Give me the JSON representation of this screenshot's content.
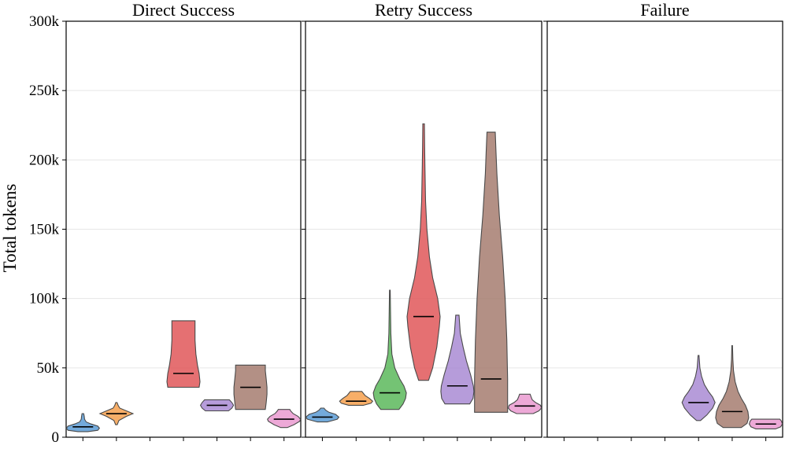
{
  "chart_data": {
    "type": "violin",
    "ylabel": "Total tokens",
    "ylim": [
      0,
      300000
    ],
    "yticks": [
      0,
      50000,
      100000,
      150000,
      200000,
      250000,
      300000
    ],
    "ytick_labels": [
      "0",
      "50k",
      "100k",
      "150k",
      "200k",
      "250k",
      "300k"
    ],
    "grid": true,
    "legend": "none",
    "series_colors": [
      "#5b9bd5",
      "#f6a04d",
      "#5cb85c",
      "#e15759",
      "#a98bd4",
      "#a67c70",
      "#ea9ad0"
    ],
    "x_slots": 7,
    "panels": [
      {
        "title": "Direct Success",
        "violins": [
          {
            "slot": 0,
            "min": 4000,
            "max": 17000,
            "median": 7500,
            "profile": [
              [
                4000,
                0.3
              ],
              [
                5000,
                0.9
              ],
              [
                6500,
                1.0
              ],
              [
                8000,
                0.9
              ],
              [
                9500,
                0.5
              ],
              [
                11000,
                0.2
              ],
              [
                13000,
                0.1
              ],
              [
                15000,
                0.08
              ],
              [
                17000,
                0.05
              ]
            ]
          },
          {
            "slot": 1,
            "min": 9000,
            "max": 25000,
            "median": 17000,
            "profile": [
              [
                9000,
                0.05
              ],
              [
                12000,
                0.15
              ],
              [
                15000,
                0.6
              ],
              [
                17000,
                1.0
              ],
              [
                19000,
                0.6
              ],
              [
                21000,
                0.2
              ],
              [
                23000,
                0.1
              ],
              [
                25000,
                0.04
              ]
            ]
          },
          {
            "slot": 3,
            "min": 36000,
            "max": 84000,
            "median": 46000,
            "profile": [
              [
                36000,
                0.95
              ],
              [
                40000,
                1.0
              ],
              [
                46000,
                0.95
              ],
              [
                52000,
                0.85
              ],
              [
                60000,
                0.75
              ],
              [
                70000,
                0.7
              ],
              [
                78000,
                0.7
              ],
              [
                84000,
                0.7
              ]
            ]
          },
          {
            "slot": 4,
            "min": 19000,
            "max": 27000,
            "median": 23000,
            "profile": [
              [
                19000,
                0.7
              ],
              [
                21000,
                0.9
              ],
              [
                23000,
                1.0
              ],
              [
                25000,
                0.9
              ],
              [
                27000,
                0.75
              ]
            ]
          },
          {
            "slot": 5,
            "min": 20000,
            "max": 52000,
            "median": 36000,
            "profile": [
              [
                20000,
                0.9
              ],
              [
                25000,
                0.95
              ],
              [
                31000,
                1.0
              ],
              [
                36000,
                1.0
              ],
              [
                42000,
                0.95
              ],
              [
                48000,
                0.9
              ],
              [
                52000,
                0.9
              ]
            ]
          },
          {
            "slot": 6,
            "min": 7000,
            "max": 20000,
            "median": 13000,
            "profile": [
              [
                7000,
                0.2
              ],
              [
                9000,
                0.6
              ],
              [
                11500,
                0.95
              ],
              [
                13000,
                1.0
              ],
              [
                15000,
                0.85
              ],
              [
                17000,
                0.55
              ],
              [
                19000,
                0.4
              ],
              [
                20000,
                0.35
              ]
            ]
          }
        ]
      },
      {
        "title": "Retry Success",
        "violins": [
          {
            "slot": 0,
            "min": 11000,
            "max": 21000,
            "median": 14500,
            "profile": [
              [
                11000,
                0.3
              ],
              [
                13000,
                0.9
              ],
              [
                14500,
                1.0
              ],
              [
                16500,
                0.8
              ],
              [
                18000,
                0.4
              ],
              [
                19500,
                0.2
              ],
              [
                21000,
                0.1
              ]
            ]
          },
          {
            "slot": 1,
            "min": 23000,
            "max": 33000,
            "median": 26000,
            "profile": [
              [
                23000,
                0.45
              ],
              [
                24500,
                0.9
              ],
              [
                26000,
                1.0
              ],
              [
                28000,
                0.8
              ],
              [
                30000,
                0.55
              ],
              [
                31500,
                0.45
              ],
              [
                33000,
                0.35
              ]
            ]
          },
          {
            "slot": 2,
            "min": 20000,
            "max": 106000,
            "median": 32000,
            "profile": [
              [
                20000,
                0.55
              ],
              [
                24000,
                0.8
              ],
              [
                28000,
                0.95
              ],
              [
                32000,
                1.0
              ],
              [
                37000,
                0.85
              ],
              [
                42000,
                0.6
              ],
              [
                50000,
                0.3
              ],
              [
                60000,
                0.12
              ],
              [
                75000,
                0.06
              ],
              [
                90000,
                0.04
              ],
              [
                106000,
                0.02
              ]
            ]
          },
          {
            "slot": 3,
            "min": 41000,
            "max": 226000,
            "median": 87000,
            "profile": [
              [
                41000,
                0.3
              ],
              [
                50000,
                0.55
              ],
              [
                65000,
                0.8
              ],
              [
                80000,
                0.95
              ],
              [
                87000,
                1.0
              ],
              [
                100000,
                0.85
              ],
              [
                115000,
                0.55
              ],
              [
                130000,
                0.35
              ],
              [
                150000,
                0.2
              ],
              [
                170000,
                0.12
              ],
              [
                195000,
                0.08
              ],
              [
                210000,
                0.06
              ],
              [
                226000,
                0.05
              ]
            ]
          },
          {
            "slot": 4,
            "min": 24000,
            "max": 88000,
            "median": 37000,
            "profile": [
              [
                24000,
                0.75
              ],
              [
                28000,
                0.95
              ],
              [
                33000,
                1.0
              ],
              [
                37000,
                0.97
              ],
              [
                45000,
                0.8
              ],
              [
                55000,
                0.55
              ],
              [
                65000,
                0.35
              ],
              [
                75000,
                0.18
              ],
              [
                88000,
                0.1
              ]
            ]
          },
          {
            "slot": 5,
            "min": 18000,
            "max": 220000,
            "median": 42000,
            "profile": [
              [
                18000,
                1.0
              ],
              [
                42000,
                1.0
              ],
              [
                70000,
                0.95
              ],
              [
                100000,
                0.85
              ],
              [
                130000,
                0.7
              ],
              [
                160000,
                0.5
              ],
              [
                190000,
                0.35
              ],
              [
                205000,
                0.3
              ],
              [
                220000,
                0.25
              ]
            ]
          },
          {
            "slot": 6,
            "min": 17000,
            "max": 31000,
            "median": 22500,
            "profile": [
              [
                17000,
                0.5
              ],
              [
                19000,
                0.85
              ],
              [
                21000,
                1.0
              ],
              [
                23000,
                0.95
              ],
              [
                25000,
                0.65
              ],
              [
                27000,
                0.45
              ],
              [
                29000,
                0.38
              ],
              [
                31000,
                0.32
              ]
            ]
          }
        ]
      },
      {
        "title": "Failure",
        "violins": [
          {
            "slot": 4,
            "min": 12000,
            "max": 59000,
            "median": 25000,
            "profile": [
              [
                12000,
                0.12
              ],
              [
                16000,
                0.5
              ],
              [
                21000,
                0.85
              ],
              [
                25000,
                1.0
              ],
              [
                29000,
                0.85
              ],
              [
                33000,
                0.6
              ],
              [
                38000,
                0.35
              ],
              [
                44000,
                0.18
              ],
              [
                50000,
                0.08
              ],
              [
                59000,
                0.03
              ]
            ]
          },
          {
            "slot": 5,
            "min": 7000,
            "max": 66000,
            "median": 18500,
            "profile": [
              [
                7000,
                0.55
              ],
              [
                10000,
                0.9
              ],
              [
                14000,
                1.0
              ],
              [
                18500,
                0.95
              ],
              [
                23000,
                0.8
              ],
              [
                28000,
                0.55
              ],
              [
                33000,
                0.35
              ],
              [
                40000,
                0.18
              ],
              [
                48000,
                0.08
              ],
              [
                56000,
                0.04
              ],
              [
                66000,
                0.02
              ]
            ]
          },
          {
            "slot": 6,
            "min": 6000,
            "max": 13000,
            "median": 9500,
            "profile": [
              [
                6000,
                0.6
              ],
              [
                7500,
                0.9
              ],
              [
                9500,
                1.0
              ],
              [
                11500,
                0.95
              ],
              [
                13000,
                0.85
              ]
            ]
          }
        ]
      }
    ]
  }
}
